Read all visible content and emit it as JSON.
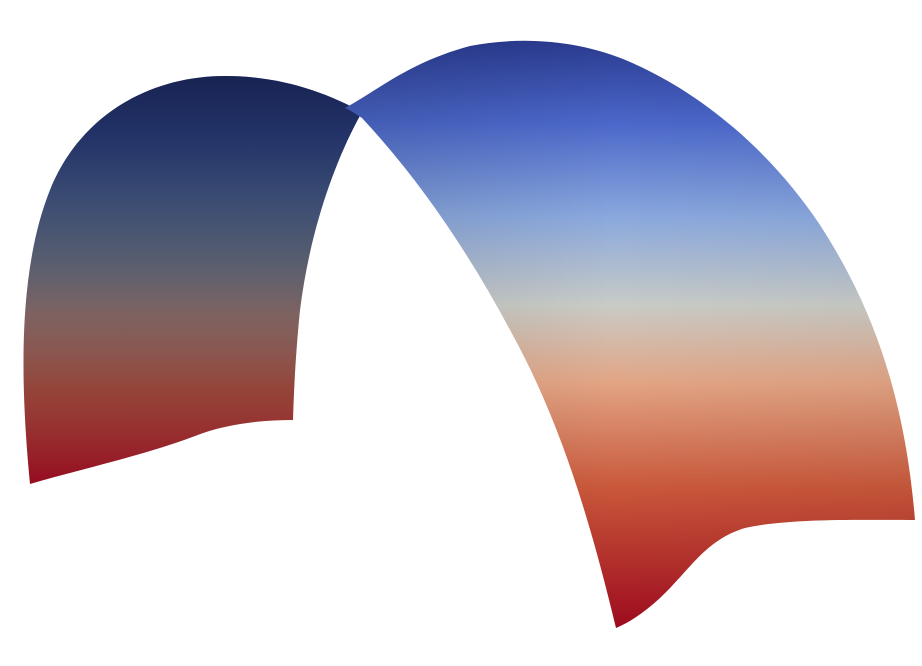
{
  "scene": {
    "background_color": "#ffffff",
    "colormap": {
      "name": "cool-to-warm",
      "stops": [
        "#2a3a8f",
        "#4a67c9",
        "#8aa8dd",
        "#c9cbc6",
        "#e2a585",
        "#c9573a",
        "#9c0a1e"
      ]
    },
    "shading": {
      "shadow_color": "#101a3a"
    }
  }
}
